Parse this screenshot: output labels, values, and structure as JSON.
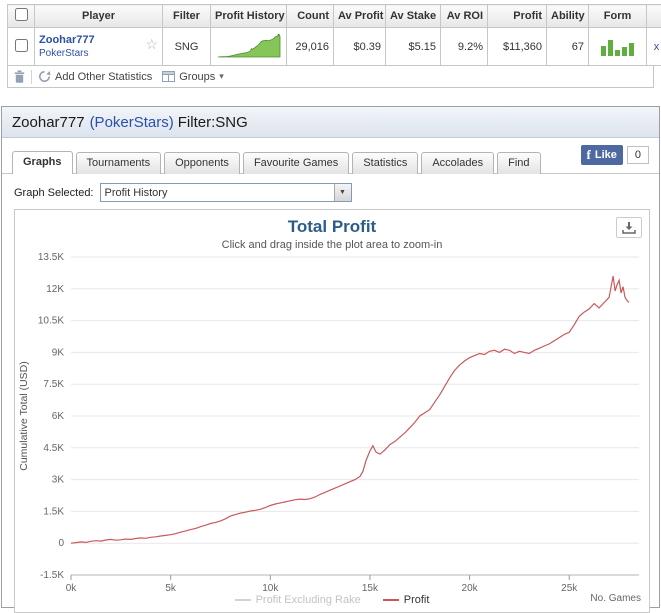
{
  "colors": {
    "line_profit": "#c9595b",
    "line_excl_rake": "#d2d2d2",
    "spark_fill": "#86c557",
    "spark_stroke": "#4e8f3a",
    "form_bar": "#5fae3f",
    "chart_title_blue": "#2c5d8a",
    "link_blue": "#2b50a8"
  },
  "top_table": {
    "headers": [
      "Player",
      "Filter",
      "Profit History",
      "Count",
      "Av Profit",
      "Av Stake",
      "Av ROI",
      "Profit",
      "Ability",
      "Form"
    ],
    "row": {
      "player": "Zoohar777",
      "site": "PokerStars",
      "filter": "SNG",
      "count": "29,016",
      "av_profit": "$0.39",
      "av_stake": "$5.15",
      "av_roi": "9.2%",
      "profit": "$11,360",
      "ability": "67",
      "remove_label": "x",
      "form_bars": [
        10,
        16,
        6,
        9,
        13
      ]
    },
    "footer": {
      "add_stats_label": "Add Other Statistics",
      "groups_label": "Groups"
    }
  },
  "panel": {
    "header": {
      "player": "Zoohar777",
      "site": "(PokerStars)",
      "filter": "Filter:SNG"
    },
    "fb": {
      "like_label": "Like",
      "count": "0"
    },
    "tabs": [
      {
        "label": "Graphs",
        "active": true
      },
      {
        "label": "Tournaments",
        "active": false
      },
      {
        "label": "Opponents",
        "active": false
      },
      {
        "label": "Favourite Games",
        "active": false
      },
      {
        "label": "Statistics",
        "active": false
      },
      {
        "label": "Accolades",
        "active": false
      },
      {
        "label": "Find",
        "active": false
      }
    ],
    "graph_selected_label": "Graph Selected:",
    "graph_select_value": "Profit History"
  },
  "chart_data": {
    "type": "line",
    "title": "Total Profit",
    "subtitle": "Click and drag inside the plot area to zoom-in",
    "ylabel": "Cumulative Total (USD)",
    "xlabel_right": "No. Games",
    "ylim": [
      -1500,
      13500
    ],
    "ytick_step": 1500,
    "ytick_labels": [
      "-1.5K",
      "0",
      "1.5K",
      "3K",
      "4.5K",
      "6K",
      "7.5K",
      "9K",
      "10.5K",
      "12K",
      "13.5K"
    ],
    "xlim": [
      0,
      28500
    ],
    "xticks": [
      0,
      5000,
      10000,
      15000,
      20000,
      25000
    ],
    "xtick_labels": [
      "0k",
      "5k",
      "10k",
      "15k",
      "20k",
      "25k"
    ],
    "grid": "horizontal",
    "legend_position": "bottom-center",
    "legend": [
      {
        "name": "Profit Excluding Rake",
        "color": "#d2d2d2",
        "disabled": true
      },
      {
        "name": "Profit",
        "color": "#c9595b",
        "disabled": false
      }
    ],
    "series": [
      {
        "name": "Profit",
        "color": "#c9595b",
        "points": [
          [
            0,
            0
          ],
          [
            250,
            30
          ],
          [
            500,
            60
          ],
          [
            750,
            40
          ],
          [
            1000,
            90
          ],
          [
            1250,
            120
          ],
          [
            1500,
            100
          ],
          [
            1750,
            150
          ],
          [
            2000,
            180
          ],
          [
            2250,
            140
          ],
          [
            2500,
            160
          ],
          [
            2750,
            200
          ],
          [
            3000,
            180
          ],
          [
            3250,
            220
          ],
          [
            3500,
            250
          ],
          [
            3750,
            230
          ],
          [
            4000,
            280
          ],
          [
            4250,
            300
          ],
          [
            4500,
            340
          ],
          [
            4750,
            370
          ],
          [
            5000,
            400
          ],
          [
            5250,
            450
          ],
          [
            5500,
            520
          ],
          [
            5750,
            580
          ],
          [
            6000,
            640
          ],
          [
            6250,
            700
          ],
          [
            6500,
            780
          ],
          [
            6750,
            850
          ],
          [
            7000,
            930
          ],
          [
            7250,
            980
          ],
          [
            7500,
            1050
          ],
          [
            7750,
            1150
          ],
          [
            8000,
            1280
          ],
          [
            8250,
            1350
          ],
          [
            8500,
            1420
          ],
          [
            8750,
            1460
          ],
          [
            9000,
            1520
          ],
          [
            9250,
            1550
          ],
          [
            9500,
            1600
          ],
          [
            9750,
            1680
          ],
          [
            10000,
            1780
          ],
          [
            10250,
            1850
          ],
          [
            10500,
            1900
          ],
          [
            10750,
            1950
          ],
          [
            11000,
            2000
          ],
          [
            11250,
            2050
          ],
          [
            11500,
            2080
          ],
          [
            11750,
            2060
          ],
          [
            12000,
            2100
          ],
          [
            12250,
            2180
          ],
          [
            12500,
            2300
          ],
          [
            12750,
            2400
          ],
          [
            13000,
            2500
          ],
          [
            13250,
            2600
          ],
          [
            13500,
            2700
          ],
          [
            13750,
            2800
          ],
          [
            14000,
            2900
          ],
          [
            14250,
            3000
          ],
          [
            14500,
            3150
          ],
          [
            14650,
            3400
          ],
          [
            14800,
            3900
          ],
          [
            15000,
            4350
          ],
          [
            15150,
            4600
          ],
          [
            15300,
            4300
          ],
          [
            15500,
            4200
          ],
          [
            15750,
            4400
          ],
          [
            16000,
            4650
          ],
          [
            16250,
            4800
          ],
          [
            16500,
            5000
          ],
          [
            16750,
            5200
          ],
          [
            17000,
            5450
          ],
          [
            17250,
            5700
          ],
          [
            17500,
            6000
          ],
          [
            17750,
            6150
          ],
          [
            18000,
            6300
          ],
          [
            18250,
            6650
          ],
          [
            18500,
            7000
          ],
          [
            18750,
            7400
          ],
          [
            19000,
            7800
          ],
          [
            19250,
            8150
          ],
          [
            19500,
            8400
          ],
          [
            19750,
            8600
          ],
          [
            20000,
            8750
          ],
          [
            20250,
            8850
          ],
          [
            20500,
            8950
          ],
          [
            20750,
            8900
          ],
          [
            21000,
            9050
          ],
          [
            21250,
            9100
          ],
          [
            21500,
            9000
          ],
          [
            21750,
            9150
          ],
          [
            22000,
            9100
          ],
          [
            22250,
            8950
          ],
          [
            22500,
            9050
          ],
          [
            22750,
            9000
          ],
          [
            23000,
            8950
          ],
          [
            23250,
            9100
          ],
          [
            23500,
            9200
          ],
          [
            23750,
            9300
          ],
          [
            24000,
            9400
          ],
          [
            24250,
            9550
          ],
          [
            24500,
            9700
          ],
          [
            24750,
            9850
          ],
          [
            25000,
            9950
          ],
          [
            25250,
            10300
          ],
          [
            25500,
            10700
          ],
          [
            25750,
            10900
          ],
          [
            26000,
            11050
          ],
          [
            26250,
            11300
          ],
          [
            26500,
            11100
          ],
          [
            26750,
            11350
          ],
          [
            27000,
            11600
          ],
          [
            27100,
            12100
          ],
          [
            27200,
            12600
          ],
          [
            27300,
            11900
          ],
          [
            27400,
            12200
          ],
          [
            27500,
            12400
          ],
          [
            27600,
            11800
          ],
          [
            27700,
            12100
          ],
          [
            27800,
            11600
          ],
          [
            27900,
            11450
          ],
          [
            28000,
            11360
          ]
        ]
      }
    ]
  }
}
